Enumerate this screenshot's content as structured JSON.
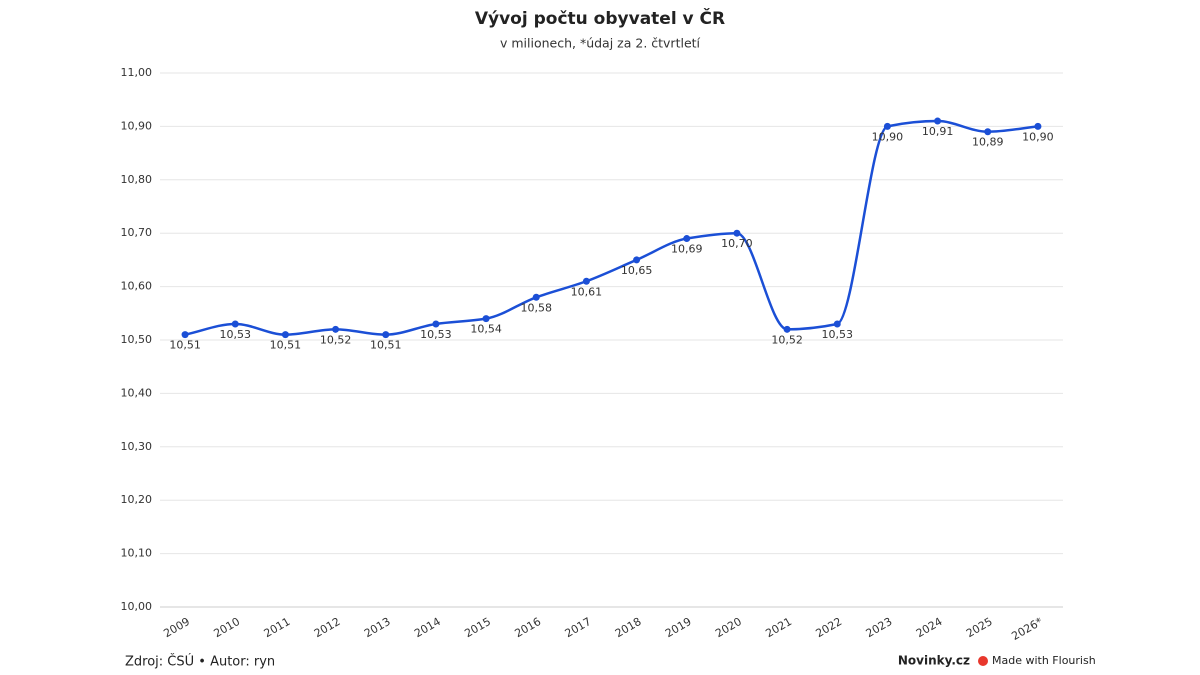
{
  "chart_data": {
    "type": "line",
    "title": "Vývoj počtu obyvatel v ČR",
    "subtitle": "v milionech, *údaj za 2. čtvrtletí",
    "categories": [
      "2009",
      "2010",
      "2011",
      "2012",
      "2013",
      "2014",
      "2015",
      "2016",
      "2017",
      "2018",
      "2019",
      "2020",
      "2021",
      "2022",
      "2023",
      "2024",
      "2025",
      "2026*"
    ],
    "values": [
      10.51,
      10.53,
      10.51,
      10.52,
      10.51,
      10.53,
      10.54,
      10.58,
      10.61,
      10.65,
      10.69,
      10.7,
      10.52,
      10.53,
      10.9,
      10.91,
      10.89,
      10.9
    ],
    "value_labels": [
      "10,51",
      "10,53",
      "10,51",
      "10,52",
      "10,51",
      "10,53",
      "10,54",
      "10,58",
      "10,61",
      "10,65",
      "10,69",
      "10,70",
      "10,52",
      "10,53",
      "10,90",
      "10,91",
      "10,89",
      "10,90"
    ],
    "color": "#1b4fd6",
    "ylim": [
      10,
      11
    ],
    "yticks": [
      {
        "value": 10,
        "label": "10,00"
      },
      {
        "value": 10.1,
        "label": "10,10"
      },
      {
        "value": 10.2,
        "label": "10,20"
      },
      {
        "value": 10.3,
        "label": "10,30"
      },
      {
        "value": 10.4,
        "label": "10,40"
      },
      {
        "value": 10.5,
        "label": "10,50"
      },
      {
        "value": 10.6,
        "label": "10,60"
      },
      {
        "value": 10.7,
        "label": "10,70"
      },
      {
        "value": 10.8,
        "label": "10,80"
      },
      {
        "value": 10.9,
        "label": "10,90"
      },
      {
        "value": 11,
        "label": "11,00"
      }
    ],
    "grid": true,
    "source": "Zdroj: ČSÚ • Autor: ryn",
    "brand": "Novinky.cz",
    "credit": "Made with Flourish"
  }
}
